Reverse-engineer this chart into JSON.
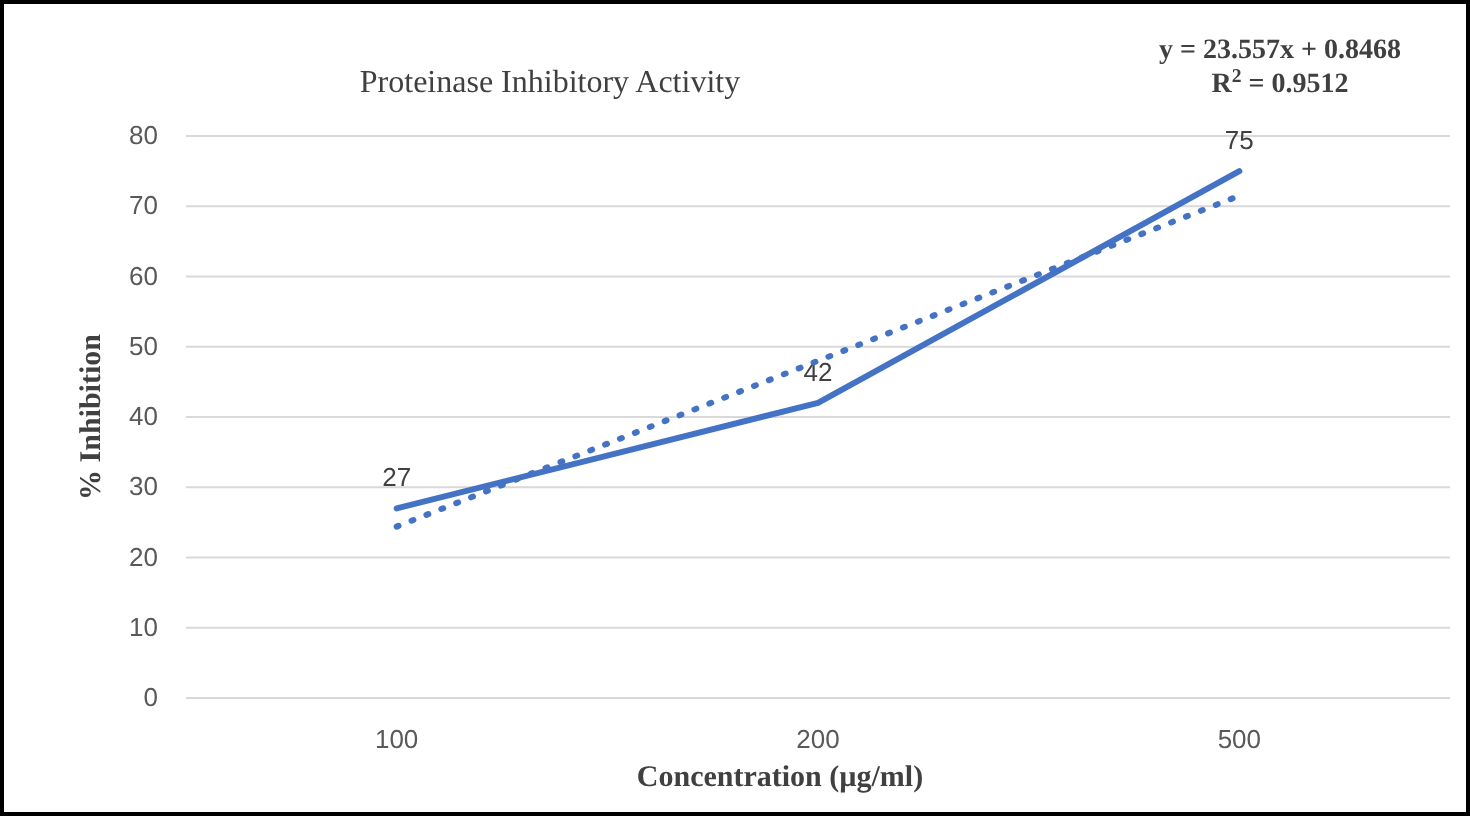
{
  "chart_data": {
    "type": "line",
    "title": "Proteinase Inhibitory Activity",
    "xlabel": "Concentration (µg/ml)",
    "ylabel": "% Inhibition",
    "categories": [
      "100",
      "200",
      "500"
    ],
    "series": [
      {
        "color": "#4472c4",
        "values": [
          27,
          42,
          75
        ],
        "value_labels": [
          "27",
          "42",
          "75"
        ],
        "line_style": "solid"
      },
      {
        "color": "#4472c4",
        "x": [
          "100",
          "200",
          "500"
        ],
        "values": [
          24.4,
          48.0,
          71.5
        ],
        "line_style": "dotted"
      }
    ],
    "annotations": [
      "y = 23.557x + 0.8468",
      "R$^{2}$ = 0.9512"
    ],
    "ylim": [
      0,
      80
    ],
    "yticks": [
      0,
      10,
      20,
      30,
      40,
      50,
      60,
      70,
      80
    ],
    "grid": "y",
    "marker": "none"
  }
}
